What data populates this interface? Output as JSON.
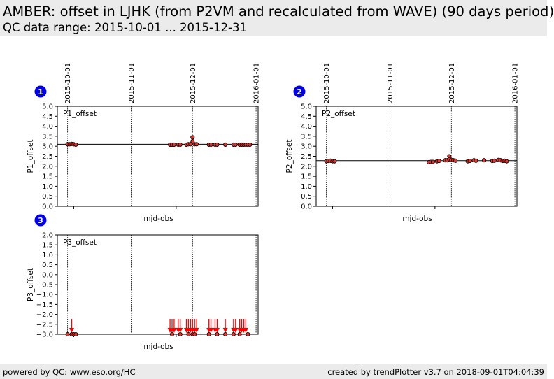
{
  "header": {
    "title": "AMBER: offset in LJHK (from P2VM and recalculated from WAVE) (90 days period)",
    "subtitle": "QC data range: 2015-10-01 ... 2015-12-31"
  },
  "footer": {
    "left": "powered by QC: www.eso.org/HC",
    "right": "created by trendPlotter v3.7 on 2018-09-01T04:04:39"
  },
  "colors": {
    "point_fill": "#e8342a",
    "point_edge": "#000000",
    "arrow": "#ff0000",
    "badge": "#0000ee"
  },
  "chart_data": [
    {
      "type": "scatter",
      "badge": "1",
      "label": "P1_offset",
      "ylabel": "P1_offset",
      "xlabel": "mjd-obs",
      "xlim": [
        "2015-09-26",
        "2016-01-02"
      ],
      "ylim": [
        0.0,
        5.0
      ],
      "yticks": [
        "0.0",
        "0.5",
        "1.0",
        "1.5",
        "2.0",
        "2.5",
        "3.0",
        "3.5",
        "4.0",
        "4.5",
        "5.0"
      ],
      "date_ticks": [
        "2015-10-01",
        "2015-11-01",
        "2015-12-01",
        "2016-01-01"
      ],
      "reference_line": 3.1,
      "points": [
        {
          "date": "2015-10-01",
          "y": 3.1
        },
        {
          "date": "2015-10-02",
          "y": 3.1
        },
        {
          "date": "2015-10-03",
          "y": 3.12
        },
        {
          "date": "2015-10-04",
          "y": 3.1
        },
        {
          "date": "2015-10-05",
          "y": 3.08
        },
        {
          "date": "2015-11-20",
          "y": 3.08
        },
        {
          "date": "2015-11-21",
          "y": 3.08
        },
        {
          "date": "2015-11-22",
          "y": 3.08
        },
        {
          "date": "2015-11-24",
          "y": 3.08
        },
        {
          "date": "2015-11-25",
          "y": 3.08
        },
        {
          "date": "2015-11-28",
          "y": 3.08
        },
        {
          "date": "2015-11-29",
          "y": 3.1
        },
        {
          "date": "2015-11-30",
          "y": 3.1
        },
        {
          "date": "2015-12-01",
          "y": 3.45
        },
        {
          "date": "2015-12-01",
          "y": 3.25
        },
        {
          "date": "2015-12-02",
          "y": 3.1
        },
        {
          "date": "2015-12-03",
          "y": 3.1
        },
        {
          "date": "2015-12-09",
          "y": 3.08
        },
        {
          "date": "2015-12-10",
          "y": 3.08
        },
        {
          "date": "2015-12-12",
          "y": 3.08
        },
        {
          "date": "2015-12-13",
          "y": 3.08
        },
        {
          "date": "2015-12-17",
          "y": 3.08
        },
        {
          "date": "2015-12-21",
          "y": 3.08
        },
        {
          "date": "2015-12-22",
          "y": 3.08
        },
        {
          "date": "2015-12-24",
          "y": 3.08
        },
        {
          "date": "2015-12-25",
          "y": 3.08
        },
        {
          "date": "2015-12-26",
          "y": 3.08
        },
        {
          "date": "2015-12-27",
          "y": 3.08
        },
        {
          "date": "2015-12-28",
          "y": 3.08
        },
        {
          "date": "2015-12-29",
          "y": 3.08
        }
      ],
      "below_range": []
    },
    {
      "type": "scatter",
      "badge": "2",
      "label": "P2_offset",
      "ylabel": "P2_offset",
      "xlabel": "mjd-obs",
      "xlim": [
        "2015-09-26",
        "2016-01-02"
      ],
      "ylim": [
        0.0,
        5.0
      ],
      "yticks": [
        "0.0",
        "0.5",
        "1.0",
        "1.5",
        "2.0",
        "2.5",
        "3.0",
        "3.5",
        "4.0",
        "4.5",
        "5.0"
      ],
      "date_ticks": [
        "2015-10-01",
        "2015-11-01",
        "2015-12-01",
        "2016-01-01"
      ],
      "reference_line": 2.28,
      "points": [
        {
          "date": "2015-10-01",
          "y": 2.25
        },
        {
          "date": "2015-10-02",
          "y": 2.27
        },
        {
          "date": "2015-10-03",
          "y": 2.28
        },
        {
          "date": "2015-10-04",
          "y": 2.25
        },
        {
          "date": "2015-10-05",
          "y": 2.25
        },
        {
          "date": "2015-11-20",
          "y": 2.2
        },
        {
          "date": "2015-11-21",
          "y": 2.22
        },
        {
          "date": "2015-11-22",
          "y": 2.22
        },
        {
          "date": "2015-11-24",
          "y": 2.25
        },
        {
          "date": "2015-11-25",
          "y": 2.27
        },
        {
          "date": "2015-11-28",
          "y": 2.3
        },
        {
          "date": "2015-11-29",
          "y": 2.3
        },
        {
          "date": "2015-11-30",
          "y": 2.5
        },
        {
          "date": "2015-11-30",
          "y": 2.35
        },
        {
          "date": "2015-12-01",
          "y": 2.32
        },
        {
          "date": "2015-12-02",
          "y": 2.3
        },
        {
          "date": "2015-12-03",
          "y": 2.28
        },
        {
          "date": "2015-12-09",
          "y": 2.25
        },
        {
          "date": "2015-12-10",
          "y": 2.27
        },
        {
          "date": "2015-12-12",
          "y": 2.3
        },
        {
          "date": "2015-12-13",
          "y": 2.28
        },
        {
          "date": "2015-12-17",
          "y": 2.3
        },
        {
          "date": "2015-12-21",
          "y": 2.27
        },
        {
          "date": "2015-12-22",
          "y": 2.28
        },
        {
          "date": "2015-12-24",
          "y": 2.32
        },
        {
          "date": "2015-12-25",
          "y": 2.3
        },
        {
          "date": "2015-12-26",
          "y": 2.27
        },
        {
          "date": "2015-12-27",
          "y": 2.28
        },
        {
          "date": "2015-12-28",
          "y": 2.25
        }
      ],
      "below_range": []
    },
    {
      "type": "scatter",
      "badge": "3",
      "label": "P3_offset",
      "ylabel": "P3_offset",
      "xlabel": "mjd-obs",
      "xlim": [
        "2015-09-26",
        "2016-01-02"
      ],
      "ylim": [
        -3.0,
        2.0
      ],
      "yticks": [
        "−3.0",
        "−2.5",
        "−2.0",
        "−1.5",
        "−1.0",
        "−0.5",
        "0.0",
        "0.5",
        "1.0",
        "1.5",
        "2.0"
      ],
      "date_ticks": [
        "2015-10-01",
        "2015-11-01",
        "2015-12-01",
        "2016-01-01"
      ],
      "reference_line": null,
      "points": [
        {
          "date": "2015-10-01",
          "y": -3.0
        },
        {
          "date": "2015-10-03",
          "y": -3.0
        },
        {
          "date": "2015-10-04",
          "y": -3.0
        },
        {
          "date": "2015-10-05",
          "y": -3.0
        },
        {
          "date": "2015-11-21",
          "y": -3.0
        },
        {
          "date": "2015-11-25",
          "y": -3.0
        },
        {
          "date": "2015-11-29",
          "y": -3.0
        },
        {
          "date": "2015-12-01",
          "y": -3.0
        },
        {
          "date": "2015-12-02",
          "y": -3.0
        },
        {
          "date": "2015-12-09",
          "y": -3.0
        },
        {
          "date": "2015-12-13",
          "y": -3.0
        },
        {
          "date": "2015-12-17",
          "y": -3.0
        },
        {
          "date": "2015-12-21",
          "y": -3.0
        },
        {
          "date": "2015-12-24",
          "y": -3.0
        },
        {
          "date": "2015-12-28",
          "y": -3.0
        }
      ],
      "below_range": [
        "2015-10-03",
        "2015-11-20",
        "2015-11-21",
        "2015-11-22",
        "2015-11-24",
        "2015-11-25",
        "2015-11-28",
        "2015-11-29",
        "2015-11-30",
        "2015-12-01",
        "2015-12-02",
        "2015-12-03",
        "2015-12-09",
        "2015-12-10",
        "2015-12-12",
        "2015-12-13",
        "2015-12-17",
        "2015-12-21",
        "2015-12-22",
        "2015-12-24",
        "2015-12-25",
        "2015-12-26",
        "2015-12-27"
      ]
    }
  ]
}
